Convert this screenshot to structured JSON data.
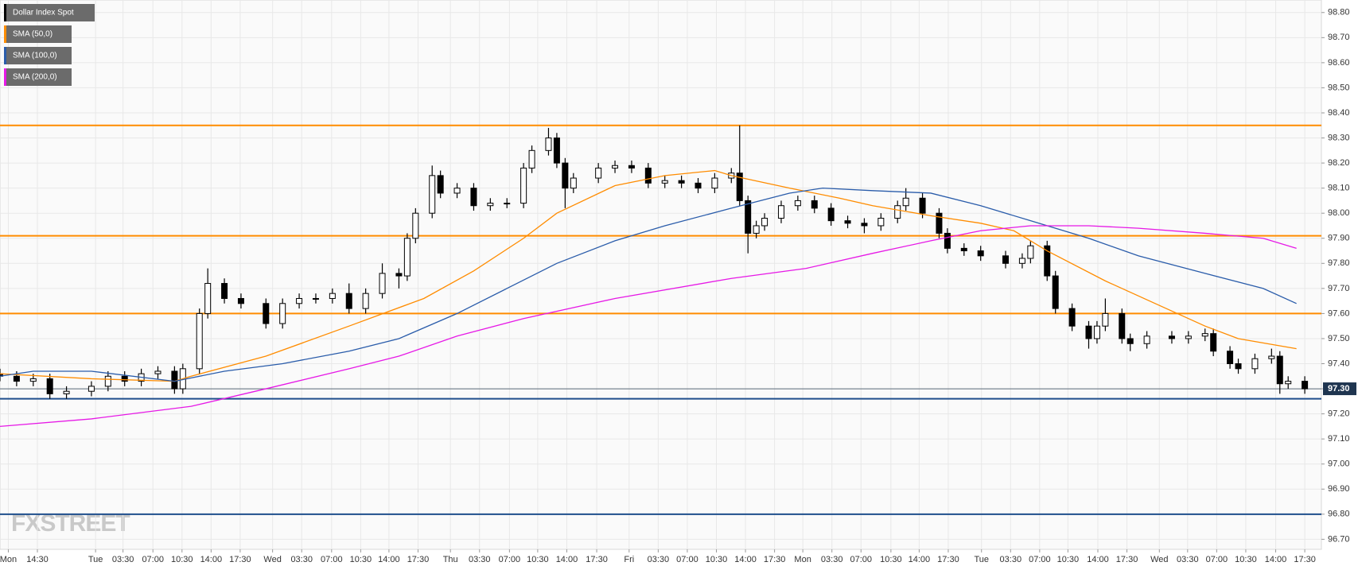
{
  "chart_data": {
    "type": "candlestick",
    "name": "Dollar Index Spot",
    "watermark": "FXSTREET",
    "candles": {
      "x": [
        0,
        2,
        4,
        6,
        8,
        11,
        13,
        15,
        17,
        19,
        21,
        22,
        24,
        25,
        27,
        29,
        32,
        34,
        36,
        38,
        40,
        42,
        44,
        46,
        48,
        49,
        50,
        52,
        53,
        55,
        57,
        59,
        61,
        63,
        64,
        66,
        67,
        68,
        69,
        72,
        74,
        76,
        78,
        80,
        82,
        84,
        86,
        88,
        89,
        90,
        91,
        92,
        94,
        96,
        98,
        100,
        102,
        104,
        106,
        108,
        109,
        111,
        113,
        114,
        116,
        118,
        121,
        123,
        124,
        126,
        127,
        129,
        131,
        132,
        133,
        135,
        136,
        138,
        141,
        143,
        145,
        146,
        148,
        149,
        151,
        153,
        154,
        155,
        157
      ],
      "open": [
        97.36,
        97.35,
        97.33,
        97.34,
        97.28,
        97.29,
        97.31,
        97.35,
        97.33,
        97.36,
        97.37,
        97.3,
        97.38,
        97.6,
        97.72,
        97.66,
        97.64,
        97.56,
        97.64,
        97.66,
        97.66,
        97.68,
        97.62,
        97.68,
        97.76,
        97.75,
        97.9,
        98.0,
        98.15,
        98.08,
        98.1,
        98.03,
        98.04,
        98.04,
        98.18,
        98.25,
        98.3,
        98.2,
        98.1,
        98.14,
        98.18,
        98.19,
        98.18,
        98.12,
        98.13,
        98.12,
        98.1,
        98.14,
        98.16,
        98.05,
        97.92,
        97.95,
        97.98,
        98.03,
        98.05,
        98.02,
        97.97,
        97.96,
        97.95,
        97.98,
        98.03,
        98.06,
        98.0,
        97.92,
        97.86,
        97.85,
        97.83,
        97.8,
        97.82,
        97.87,
        97.75,
        97.62,
        97.55,
        97.5,
        97.55,
        97.6,
        97.5,
        97.48,
        97.51,
        97.5,
        97.51,
        97.52,
        97.45,
        97.4,
        97.38,
        97.42,
        97.43,
        97.32,
        97.33
      ],
      "high": [
        97.38,
        97.37,
        97.36,
        97.36,
        97.31,
        97.33,
        97.37,
        97.37,
        97.38,
        97.39,
        97.39,
        97.4,
        97.62,
        97.78,
        97.74,
        97.68,
        97.66,
        97.66,
        97.68,
        97.68,
        97.7,
        97.72,
        97.7,
        97.8,
        97.78,
        97.92,
        98.02,
        98.19,
        98.17,
        98.12,
        98.12,
        98.06,
        98.06,
        98.2,
        98.27,
        98.34,
        98.32,
        98.22,
        98.16,
        98.2,
        98.21,
        98.21,
        98.2,
        98.15,
        98.15,
        98.14,
        98.16,
        98.18,
        98.35,
        98.07,
        97.97,
        98.0,
        98.05,
        98.07,
        98.07,
        98.04,
        97.99,
        97.98,
        98.0,
        98.05,
        98.1,
        98.08,
        98.02,
        97.94,
        97.88,
        97.87,
        97.85,
        97.84,
        97.89,
        97.89,
        97.77,
        97.64,
        97.57,
        97.57,
        97.66,
        97.62,
        97.52,
        97.53,
        97.53,
        97.53,
        97.54,
        97.54,
        97.47,
        97.42,
        97.44,
        97.46,
        97.45,
        97.35,
        97.35
      ],
      "low": [
        97.33,
        97.31,
        97.31,
        97.26,
        97.26,
        97.27,
        97.29,
        97.31,
        97.31,
        97.34,
        97.28,
        97.28,
        97.36,
        97.58,
        97.64,
        97.62,
        97.54,
        97.54,
        97.62,
        97.64,
        97.64,
        97.6,
        97.6,
        97.66,
        97.7,
        97.73,
        97.88,
        97.98,
        98.06,
        98.06,
        98.01,
        98.01,
        98.02,
        98.02,
        98.16,
        98.23,
        98.18,
        98.02,
        98.08,
        98.12,
        98.16,
        98.16,
        98.1,
        98.1,
        98.1,
        98.08,
        98.08,
        98.12,
        98.03,
        97.84,
        97.9,
        97.93,
        97.96,
        98.01,
        98.0,
        97.95,
        97.94,
        97.92,
        97.93,
        97.96,
        98.01,
        97.98,
        97.9,
        97.84,
        97.83,
        97.81,
        97.78,
        97.78,
        97.8,
        97.73,
        97.6,
        97.53,
        97.46,
        97.48,
        97.53,
        97.48,
        97.45,
        97.46,
        97.48,
        97.48,
        97.49,
        97.43,
        97.38,
        97.36,
        97.36,
        97.4,
        97.28,
        97.3,
        97.28
      ],
      "close": [
        97.35,
        97.33,
        97.34,
        97.28,
        97.29,
        97.31,
        97.35,
        97.33,
        97.36,
        97.37,
        97.3,
        97.38,
        97.6,
        97.72,
        97.66,
        97.64,
        97.56,
        97.64,
        97.66,
        97.66,
        97.68,
        97.62,
        97.68,
        97.76,
        97.75,
        97.9,
        98.0,
        98.15,
        98.08,
        98.1,
        98.03,
        98.04,
        98.04,
        98.18,
        98.25,
        98.3,
        98.2,
        98.1,
        98.14,
        98.18,
        98.19,
        98.18,
        98.12,
        98.13,
        98.12,
        98.1,
        98.14,
        98.16,
        98.05,
        97.92,
        97.95,
        97.98,
        98.03,
        98.05,
        98.02,
        97.97,
        97.96,
        97.95,
        97.98,
        98.03,
        98.06,
        98.0,
        97.92,
        97.86,
        97.85,
        97.83,
        97.8,
        97.82,
        97.87,
        97.75,
        97.62,
        97.55,
        97.5,
        97.55,
        97.6,
        97.5,
        97.48,
        97.51,
        97.5,
        97.51,
        97.52,
        97.45,
        97.4,
        97.38,
        97.42,
        97.43,
        97.32,
        97.33,
        97.3
      ]
    },
    "series": [
      {
        "name": "SMA (50,0)",
        "color": "#ff8c00",
        "x": [
          0,
          11,
          21,
          23,
          32,
          42,
          51,
          57,
          63,
          67,
          74,
          80,
          86,
          88,
          95,
          101,
          105,
          112,
          118,
          122,
          126,
          133,
          139,
          145,
          149,
          156
        ],
        "values": [
          97.36,
          97.34,
          97.33,
          97.35,
          97.43,
          97.55,
          97.66,
          97.77,
          97.9,
          98.0,
          98.11,
          98.15,
          98.17,
          98.15,
          98.1,
          98.06,
          98.03,
          97.99,
          97.96,
          97.93,
          97.85,
          97.73,
          97.64,
          97.55,
          97.5,
          97.46
        ]
      },
      {
        "name": "SMA (100,0)",
        "color": "#2a5caa",
        "x": [
          0,
          4,
          11,
          21,
          27,
          34,
          42,
          48,
          55,
          61,
          67,
          74,
          80,
          88,
          95,
          99,
          105,
          112,
          118,
          124,
          131,
          137,
          145,
          152,
          156
        ],
        "values": [
          97.35,
          97.37,
          97.37,
          97.33,
          97.37,
          97.4,
          97.45,
          97.5,
          97.6,
          97.7,
          97.8,
          97.89,
          97.95,
          98.02,
          98.08,
          98.1,
          98.09,
          98.08,
          98.03,
          97.97,
          97.9,
          97.83,
          97.76,
          97.7,
          97.64
        ]
      },
      {
        "name": "SMA (200,0)",
        "color": "#e619e6",
        "x": [
          0,
          11,
          23,
          32,
          42,
          48,
          55,
          63,
          74,
          88,
          97,
          105,
          112,
          118,
          124,
          131,
          137,
          145,
          152,
          156
        ],
        "values": [
          97.15,
          97.18,
          97.23,
          97.3,
          97.38,
          97.43,
          97.51,
          97.58,
          97.66,
          97.74,
          97.78,
          97.84,
          97.89,
          97.93,
          97.95,
          97.95,
          97.94,
          97.92,
          97.9,
          97.86
        ]
      }
    ],
    "levels": [
      {
        "value": 98.35,
        "color": "#ff8c00"
      },
      {
        "value": 97.91,
        "color": "#ff8c00"
      },
      {
        "value": 97.6,
        "color": "#ff8c00"
      },
      {
        "value": 97.26,
        "color": "#1f4e8c"
      },
      {
        "value": 96.8,
        "color": "#1f4e8c"
      }
    ],
    "last_price": {
      "value": 97.3,
      "label": "97.30"
    },
    "xlim": [
      0,
      159
    ],
    "ylim": [
      96.66,
      98.85
    ],
    "grid": true,
    "yticks": [
      {
        "value": 96.7,
        "label": "96.70"
      },
      {
        "value": 96.8,
        "label": "96.80"
      },
      {
        "value": 96.9,
        "label": "96.90"
      },
      {
        "value": 97.0,
        "label": "97.00"
      },
      {
        "value": 97.1,
        "label": "97.10"
      },
      {
        "value": 97.2,
        "label": "97.20"
      },
      {
        "value": 97.3,
        "label": "97.30"
      },
      {
        "value": 97.4,
        "label": "97.40"
      },
      {
        "value": 97.5,
        "label": "97.50"
      },
      {
        "value": 97.6,
        "label": "97.60"
      },
      {
        "value": 97.7,
        "label": "97.70"
      },
      {
        "value": 97.8,
        "label": "97.80"
      },
      {
        "value": 97.9,
        "label": "97.90"
      },
      {
        "value": 98.0,
        "label": "98.00"
      },
      {
        "value": 98.1,
        "label": "98.10"
      },
      {
        "value": 98.2,
        "label": "98.20"
      },
      {
        "value": 98.3,
        "label": "98.30"
      },
      {
        "value": 98.4,
        "label": "98.40"
      },
      {
        "value": 98.5,
        "label": "98.50"
      },
      {
        "value": 98.6,
        "label": "98.60"
      },
      {
        "value": 98.7,
        "label": "98.70"
      },
      {
        "value": 98.8,
        "label": "98.80"
      }
    ],
    "xticks": [
      {
        "value": 1,
        "label": "Mon"
      },
      {
        "value": 4.5,
        "label": "14:30"
      },
      {
        "value": 11.5,
        "label": "Tue"
      },
      {
        "value": 14.8,
        "label": "03:30"
      },
      {
        "value": 18.4,
        "label": "07:00"
      },
      {
        "value": 21.9,
        "label": "10:30"
      },
      {
        "value": 25.4,
        "label": "14:00"
      },
      {
        "value": 28.9,
        "label": "17:30"
      },
      {
        "value": 32.8,
        "label": "Wed"
      },
      {
        "value": 36.3,
        "label": "03:30"
      },
      {
        "value": 39.9,
        "label": "07:00"
      },
      {
        "value": 43.4,
        "label": "10:30"
      },
      {
        "value": 46.8,
        "label": "14:00"
      },
      {
        "value": 50.3,
        "label": "17:30"
      },
      {
        "value": 54.2,
        "label": "Thu"
      },
      {
        "value": 57.7,
        "label": "03:30"
      },
      {
        "value": 61.3,
        "label": "07:00"
      },
      {
        "value": 64.7,
        "label": "10:30"
      },
      {
        "value": 68.2,
        "label": "14:00"
      },
      {
        "value": 71.8,
        "label": "17:30"
      },
      {
        "value": 75.7,
        "label": "Fri"
      },
      {
        "value": 79.2,
        "label": "03:30"
      },
      {
        "value": 82.7,
        "label": "07:00"
      },
      {
        "value": 86.2,
        "label": "10:30"
      },
      {
        "value": 89.7,
        "label": "14:00"
      },
      {
        "value": 93.2,
        "label": "17:30"
      },
      {
        "value": 96.6,
        "label": "Mon"
      },
      {
        "value": 100.1,
        "label": "03:30"
      },
      {
        "value": 103.6,
        "label": "07:00"
      },
      {
        "value": 107.2,
        "label": "10:30"
      },
      {
        "value": 110.6,
        "label": "14:00"
      },
      {
        "value": 114.1,
        "label": "17:30"
      },
      {
        "value": 118.1,
        "label": "Tue"
      },
      {
        "value": 121.6,
        "label": "03:30"
      },
      {
        "value": 125.1,
        "label": "07:00"
      },
      {
        "value": 128.5,
        "label": "10:30"
      },
      {
        "value": 132.1,
        "label": "14:00"
      },
      {
        "value": 135.6,
        "label": "17:30"
      },
      {
        "value": 139.5,
        "label": "Wed"
      },
      {
        "value": 142.9,
        "label": "03:30"
      },
      {
        "value": 146.4,
        "label": "07:00"
      },
      {
        "value": 149.9,
        "label": "10:30"
      },
      {
        "value": 153.5,
        "label": "14:00"
      },
      {
        "value": 157.0,
        "label": "17:30"
      }
    ]
  }
}
